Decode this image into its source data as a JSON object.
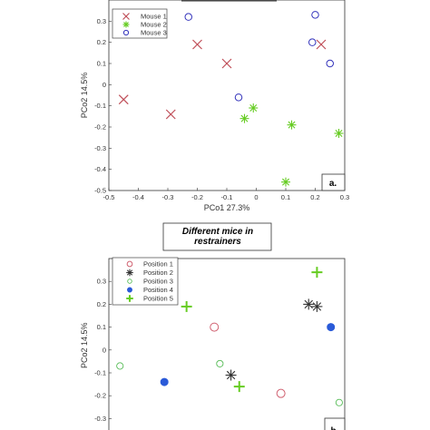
{
  "chart_data": [
    {
      "type": "scatter",
      "title": "",
      "xlabel": "PCo1 27.3%",
      "ylabel": "PCo2 14.5%",
      "xlim": [
        -0.5,
        0.3
      ],
      "ylim": [
        -0.5,
        0.4
      ],
      "xticks": [
        "-0.5",
        "-0.4",
        "-0.3",
        "-0.2",
        "-0.1",
        "0",
        "0.1",
        "0.2",
        "0.3"
      ],
      "yticks": [
        "-0.5",
        "-0.4",
        "-0.3",
        "-0.2",
        "-0.1",
        "0",
        "0.1",
        "0.2",
        "0.3"
      ],
      "legend_position": "top-left",
      "panel_label": "a.",
      "series": [
        {
          "name": "Mouse 1",
          "marker": "x",
          "color": "#c0505a",
          "points": [
            [
              -0.2,
              0.19
            ],
            [
              -0.1,
              0.1
            ],
            [
              -0.45,
              -0.07
            ],
            [
              -0.29,
              -0.14
            ],
            [
              0.22,
              0.19
            ]
          ]
        },
        {
          "name": "Mouse 2",
          "marker": "star",
          "color": "#66cc22",
          "points": [
            [
              -0.01,
              -0.11
            ],
            [
              -0.04,
              -0.16
            ],
            [
              0.12,
              -0.19
            ],
            [
              0.28,
              -0.23
            ],
            [
              0.1,
              -0.46
            ]
          ]
        },
        {
          "name": "Mouse 3",
          "marker": "circle",
          "color": "#3333bb",
          "points": [
            [
              -0.23,
              0.32
            ],
            [
              0.2,
              0.33
            ],
            [
              0.19,
              0.2
            ],
            [
              0.25,
              0.1
            ],
            [
              -0.06,
              -0.06
            ]
          ]
        }
      ]
    },
    {
      "type": "scatter",
      "title": "Different mice in restrainers",
      "title_lines": [
        "Different mice in",
        "restrainers"
      ],
      "xlabel": "",
      "ylabel": "PCo2 14.5%",
      "ylim": [
        -0.35,
        0.4
      ],
      "yticks": [
        "-0.3",
        "-0.2",
        "-0.1",
        "0",
        "0.1",
        "0.2",
        "0.3"
      ],
      "legend_position": "top-left",
      "panel_label": "b.",
      "series": [
        {
          "name": "Position 1",
          "marker": "circle",
          "color": "#d06070",
          "points": [
            [
              -0.3,
              0.32
            ],
            [
              -0.12,
              0.1
            ],
            [
              0.12,
              -0.19
            ]
          ]
        },
        {
          "name": "Position 2",
          "marker": "star",
          "color": "#333333",
          "points": [
            [
              0.22,
              0.2
            ],
            [
              0.25,
              0.19
            ],
            [
              -0.06,
              -0.11
            ]
          ]
        },
        {
          "name": "Position 3",
          "marker": "circle-open",
          "color": "#55bb55",
          "points": [
            [
              -0.46,
              -0.07
            ],
            [
              -0.1,
              -0.06
            ],
            [
              0.33,
              -0.23
            ]
          ]
        },
        {
          "name": "Position 4",
          "marker": "dot",
          "color": "#2a5ad8",
          "points": [
            [
              -0.3,
              -0.14
            ],
            [
              0.3,
              0.1
            ]
          ]
        },
        {
          "name": "Position 5",
          "marker": "plus",
          "color": "#66cc22",
          "points": [
            [
              0.25,
              0.34
            ],
            [
              -0.22,
              0.19
            ],
            [
              -0.03,
              -0.16
            ]
          ]
        }
      ]
    }
  ]
}
